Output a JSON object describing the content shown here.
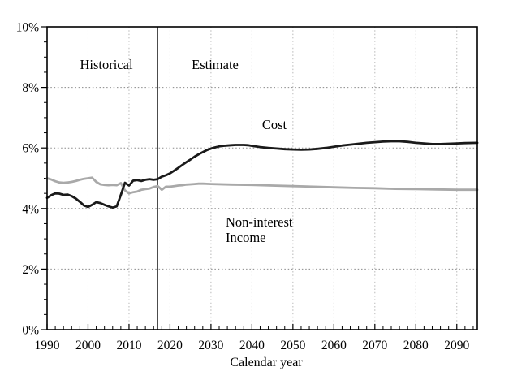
{
  "chart_data": {
    "type": "line",
    "title": "",
    "xlabel": "Calendar year",
    "ylabel": "",
    "grid": true,
    "legend_position": "none",
    "x_axis": {
      "min": 1990,
      "max": 2095,
      "ticks": [
        1990,
        2000,
        2010,
        2020,
        2030,
        2040,
        2050,
        2060,
        2070,
        2080,
        2090
      ],
      "minor_tick_step_years": 2
    },
    "y_axis": {
      "min": 0,
      "max": 10,
      "ticks": [
        0,
        2,
        4,
        6,
        8,
        10
      ],
      "tick_labels": [
        "0%",
        "2%",
        "4%",
        "6%",
        "8%",
        "10%"
      ],
      "minor_tick_step": 0.5,
      "unit": "percent"
    },
    "boundary_year": 2017,
    "annotations": {
      "historical": "Historical",
      "estimate": "Estimate",
      "cost": "Cost",
      "income_line1": "Non-interest",
      "income_line2": "Income"
    },
    "colors": {
      "cost_line": "#1a1a1a",
      "income_line": "#a9a9a9",
      "boundary_line": "#404040",
      "h_grid": "#8a8a8a",
      "v_grid": "#b8b8b8",
      "border": "#000000"
    },
    "series": [
      {
        "name": "Cost",
        "color_key": "cost_line",
        "points": [
          [
            1990,
            4.35
          ],
          [
            1991,
            4.44
          ],
          [
            1992,
            4.5
          ],
          [
            1993,
            4.49
          ],
          [
            1994,
            4.45
          ],
          [
            1995,
            4.46
          ],
          [
            1996,
            4.41
          ],
          [
            1997,
            4.33
          ],
          [
            1998,
            4.22
          ],
          [
            1999,
            4.1
          ],
          [
            2000,
            4.05
          ],
          [
            2001,
            4.12
          ],
          [
            2002,
            4.21
          ],
          [
            2003,
            4.18
          ],
          [
            2004,
            4.12
          ],
          [
            2005,
            4.07
          ],
          [
            2006,
            4.03
          ],
          [
            2007,
            4.07
          ],
          [
            2008,
            4.45
          ],
          [
            2009,
            4.85
          ],
          [
            2010,
            4.76
          ],
          [
            2011,
            4.92
          ],
          [
            2012,
            4.94
          ],
          [
            2013,
            4.91
          ],
          [
            2014,
            4.95
          ],
          [
            2015,
            4.97
          ],
          [
            2016,
            4.95
          ],
          [
            2017,
            4.97
          ],
          [
            2018,
            5.05
          ],
          [
            2019,
            5.1
          ],
          [
            2020,
            5.16
          ],
          [
            2021,
            5.25
          ],
          [
            2022,
            5.34
          ],
          [
            2023,
            5.44
          ],
          [
            2024,
            5.53
          ],
          [
            2025,
            5.62
          ],
          [
            2026,
            5.71
          ],
          [
            2027,
            5.79
          ],
          [
            2028,
            5.86
          ],
          [
            2029,
            5.93
          ],
          [
            2030,
            5.98
          ],
          [
            2031,
            6.02
          ],
          [
            2032,
            6.05
          ],
          [
            2033,
            6.07
          ],
          [
            2034,
            6.08
          ],
          [
            2035,
            6.09
          ],
          [
            2036,
            6.1
          ],
          [
            2037,
            6.1
          ],
          [
            2038,
            6.1
          ],
          [
            2039,
            6.09
          ],
          [
            2040,
            6.07
          ],
          [
            2042,
            6.03
          ],
          [
            2044,
            6.0
          ],
          [
            2046,
            5.98
          ],
          [
            2048,
            5.96
          ],
          [
            2050,
            5.95
          ],
          [
            2052,
            5.94
          ],
          [
            2054,
            5.95
          ],
          [
            2056,
            5.97
          ],
          [
            2058,
            6.0
          ],
          [
            2060,
            6.04
          ],
          [
            2062,
            6.08
          ],
          [
            2064,
            6.11
          ],
          [
            2066,
            6.14
          ],
          [
            2068,
            6.17
          ],
          [
            2070,
            6.19
          ],
          [
            2072,
            6.21
          ],
          [
            2074,
            6.22
          ],
          [
            2076,
            6.22
          ],
          [
            2078,
            6.2
          ],
          [
            2080,
            6.17
          ],
          [
            2082,
            6.15
          ],
          [
            2084,
            6.13
          ],
          [
            2086,
            6.13
          ],
          [
            2088,
            6.14
          ],
          [
            2090,
            6.15
          ],
          [
            2092,
            6.16
          ],
          [
            2095,
            6.17
          ]
        ]
      },
      {
        "name": "Non-interest Income",
        "color_key": "income_line",
        "points": [
          [
            1990,
            5.0
          ],
          [
            1991,
            4.96
          ],
          [
            1992,
            4.9
          ],
          [
            1993,
            4.86
          ],
          [
            1994,
            4.85
          ],
          [
            1995,
            4.86
          ],
          [
            1996,
            4.88
          ],
          [
            1997,
            4.91
          ],
          [
            1998,
            4.95
          ],
          [
            1999,
            4.98
          ],
          [
            2000,
            5.0
          ],
          [
            2001,
            5.02
          ],
          [
            2002,
            4.88
          ],
          [
            2003,
            4.8
          ],
          [
            2004,
            4.78
          ],
          [
            2005,
            4.77
          ],
          [
            2006,
            4.78
          ],
          [
            2007,
            4.77
          ],
          [
            2008,
            4.84
          ],
          [
            2009,
            4.6
          ],
          [
            2010,
            4.5
          ],
          [
            2011,
            4.54
          ],
          [
            2012,
            4.56
          ],
          [
            2013,
            4.62
          ],
          [
            2014,
            4.64
          ],
          [
            2015,
            4.66
          ],
          [
            2016,
            4.71
          ],
          [
            2017,
            4.74
          ],
          [
            2018,
            4.62
          ],
          [
            2019,
            4.72
          ],
          [
            2020,
            4.72
          ],
          [
            2021,
            4.74
          ],
          [
            2022,
            4.76
          ],
          [
            2023,
            4.77
          ],
          [
            2024,
            4.79
          ],
          [
            2025,
            4.8
          ],
          [
            2026,
            4.81
          ],
          [
            2027,
            4.82
          ],
          [
            2028,
            4.82
          ],
          [
            2030,
            4.81
          ],
          [
            2035,
            4.79
          ],
          [
            2040,
            4.78
          ],
          [
            2045,
            4.76
          ],
          [
            2050,
            4.74
          ],
          [
            2055,
            4.72
          ],
          [
            2060,
            4.7
          ],
          [
            2065,
            4.68
          ],
          [
            2070,
            4.67
          ],
          [
            2075,
            4.65
          ],
          [
            2080,
            4.64
          ],
          [
            2085,
            4.63
          ],
          [
            2090,
            4.62
          ],
          [
            2095,
            4.62
          ]
        ]
      }
    ]
  }
}
